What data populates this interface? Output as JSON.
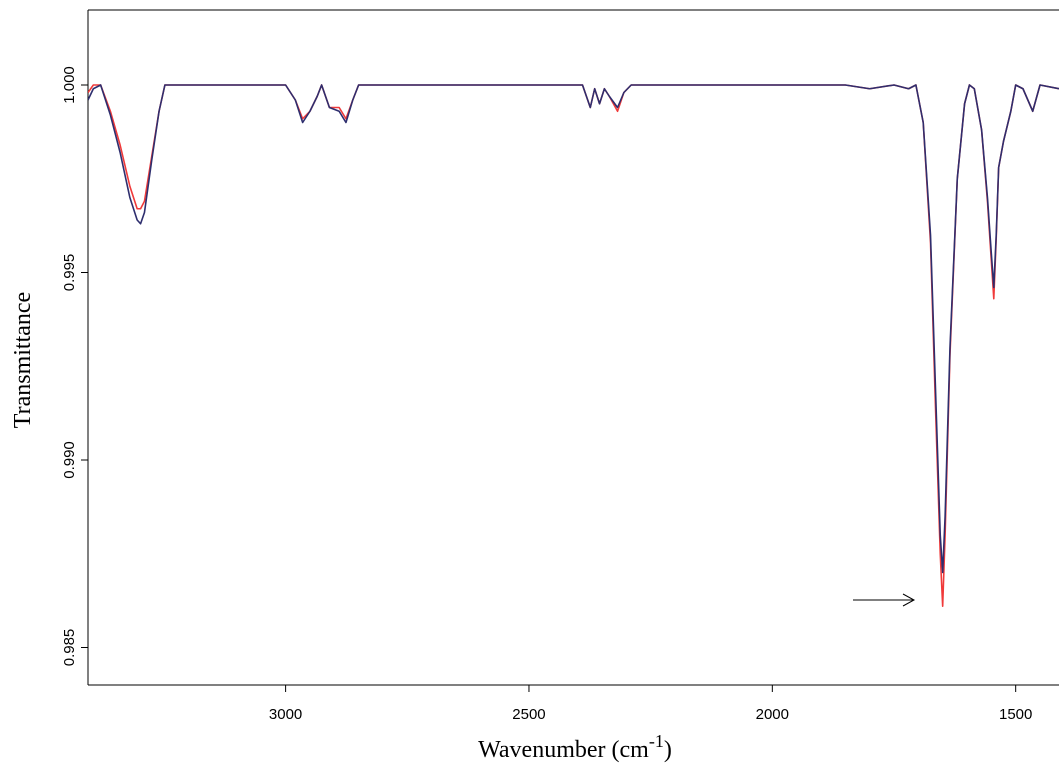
{
  "chart_data": {
    "type": "line",
    "ylabel": "Transmittance",
    "xlabel": {
      "main": "Wavenumber  (cm",
      "sup": "-1",
      "end": ")"
    },
    "xlim": [
      3406,
      1411
    ],
    "ylim": [
      0.984,
      1.002
    ],
    "xticks": [
      3000,
      2500,
      2000,
      1500
    ],
    "yticks": [
      {
        "value": 1,
        "label": "1.000"
      },
      0.995,
      {
        "value": 0.99,
        "label": "0.990"
      },
      0.985
    ],
    "x": [
      3406,
      3395,
      3380,
      3360,
      3340,
      3320,
      3305,
      3298,
      3290,
      3275,
      3260,
      3248,
      3200,
      3100,
      3000,
      2980,
      2965,
      2950,
      2935,
      2926,
      2910,
      2890,
      2876,
      2862,
      2850,
      2800,
      2500,
      2390,
      2374,
      2365,
      2355,
      2345,
      2335,
      2318,
      2305,
      2290,
      2000,
      1850,
      1800,
      1750,
      1720,
      1705,
      1690,
      1675,
      1665,
      1655,
      1650,
      1645,
      1635,
      1620,
      1605,
      1595,
      1585,
      1570,
      1558,
      1550,
      1545,
      1540,
      1535,
      1525,
      1510,
      1500,
      1485,
      1475,
      1465,
      1450,
      1411
    ],
    "series": [
      {
        "color": "#f03a3a",
        "values": [
          0.9998,
          1.0,
          1.0,
          0.9993,
          0.9984,
          0.9973,
          0.9967,
          0.9967,
          0.9969,
          0.9981,
          0.9993,
          1.0,
          1.0,
          1.0,
          1.0,
          0.9996,
          0.9991,
          0.9993,
          0.9997,
          1.0,
          0.9994,
          0.9994,
          0.9991,
          0.9996,
          1.0,
          1.0,
          1.0,
          1.0,
          0.9994,
          0.9999,
          0.9995,
          0.9999,
          0.9997,
          0.9993,
          0.9998,
          1.0,
          1.0,
          1.0,
          0.9999,
          1.0,
          0.9999,
          1.0,
          0.999,
          0.9958,
          0.9915,
          0.9875,
          0.9861,
          0.988,
          0.9928,
          0.9975,
          0.9995,
          1.0,
          0.9999,
          0.9988,
          0.9969,
          0.9953,
          0.9943,
          0.9959,
          0.9978,
          0.9985,
          0.9993,
          1.0,
          0.9999,
          0.9996,
          0.9993,
          1.0,
          0.9999
        ]
      },
      {
        "color": "#2e2e6e",
        "values": [
          0.9996,
          0.9999,
          1.0,
          0.9992,
          0.9982,
          0.997,
          0.9964,
          0.9963,
          0.9966,
          0.998,
          0.9993,
          1.0,
          1.0,
          1.0,
          1.0,
          0.9996,
          0.999,
          0.9993,
          0.9997,
          1.0,
          0.9994,
          0.9993,
          0.999,
          0.9996,
          1.0,
          1.0,
          1.0,
          1.0,
          0.9994,
          0.9999,
          0.9995,
          0.9999,
          0.9997,
          0.9994,
          0.9998,
          1.0,
          1.0,
          1.0,
          0.9999,
          1.0,
          0.9999,
          1.0,
          0.999,
          0.996,
          0.992,
          0.988,
          0.987,
          0.9885,
          0.993,
          0.9975,
          0.9995,
          1.0,
          0.9999,
          0.9988,
          0.997,
          0.9955,
          0.9946,
          0.996,
          0.9978,
          0.9985,
          0.9993,
          1.0,
          0.9999,
          0.9996,
          0.9993,
          1.0,
          0.9999
        ]
      }
    ]
  }
}
